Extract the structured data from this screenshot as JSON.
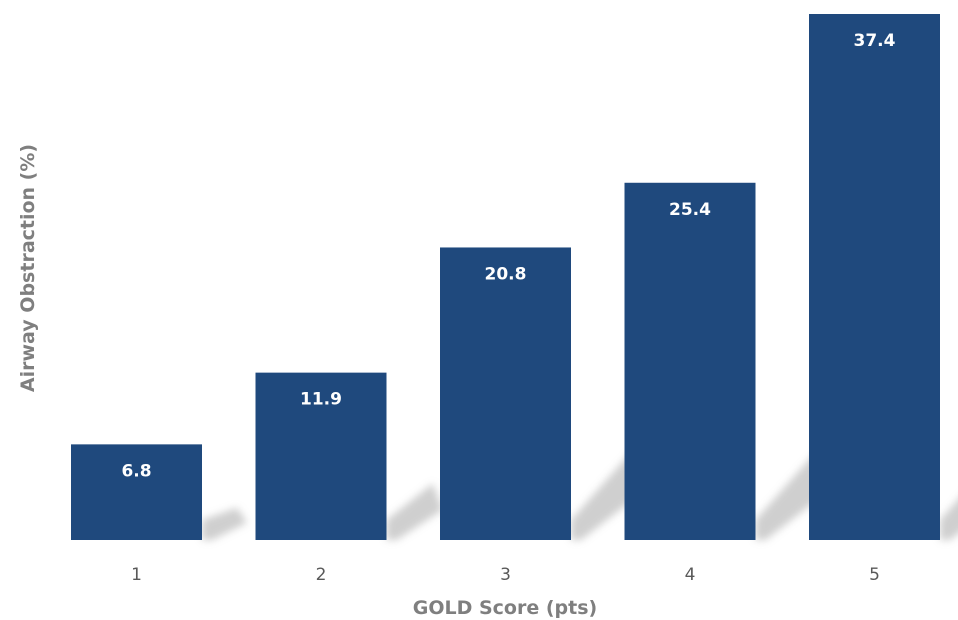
{
  "chart_data": {
    "type": "bar",
    "categories": [
      "1",
      "2",
      "3",
      "4",
      "5"
    ],
    "values": [
      6.8,
      11.9,
      20.8,
      25.4,
      37.4
    ],
    "data_labels": [
      "6.8",
      "11.9",
      "20.8",
      "25.4",
      "37.4"
    ],
    "title": "",
    "xlabel": "GOLD Score (pts)",
    "ylabel": "Airway Obstraction (%)",
    "ylim": [
      0,
      37.4
    ],
    "grid": false,
    "legend": "none",
    "bar_color": "#1f497d",
    "shadow_color": "#bfbfbf"
  }
}
